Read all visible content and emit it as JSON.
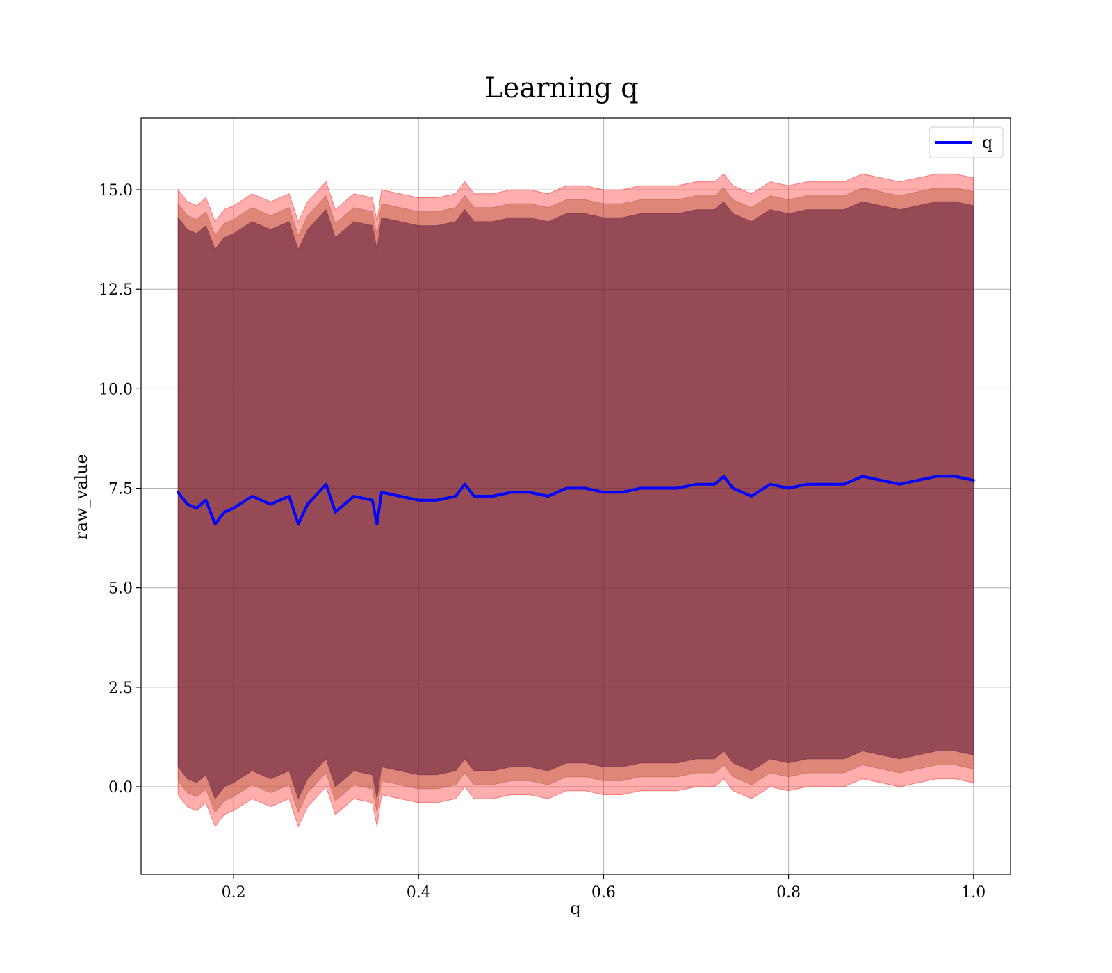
{
  "chart_data": {
    "type": "line",
    "title": "Learning q",
    "xlabel": "q",
    "ylabel": "raw_value",
    "xlim": [
      0.1,
      1.04
    ],
    "ylim": [
      -2.2,
      16.8
    ],
    "x_ticks": [
      0.2,
      0.4,
      0.6,
      0.8,
      1.0
    ],
    "x_tick_labels": [
      "0.2",
      "0.4",
      "0.6",
      "0.8",
      "1.0"
    ],
    "y_ticks": [
      0.0,
      2.5,
      5.0,
      7.5,
      10.0,
      12.5,
      15.0
    ],
    "y_tick_labels": [
      "0.0",
      "2.5",
      "5.0",
      "7.5",
      "10.0",
      "12.5",
      "15.0"
    ],
    "grid": true,
    "legend_position": "top-right",
    "colors": {
      "line": "#0000ff",
      "band_outer": "#ff0000",
      "band_middle": "#b05030",
      "band_inner": "#5a1a3a",
      "grid": "#b0b0b0"
    },
    "series": [
      {
        "name": "q",
        "x": [
          0.14,
          0.15,
          0.16,
          0.17,
          0.18,
          0.19,
          0.2,
          0.22,
          0.24,
          0.26,
          0.27,
          0.28,
          0.3,
          0.31,
          0.33,
          0.35,
          0.355,
          0.36,
          0.38,
          0.4,
          0.42,
          0.44,
          0.45,
          0.46,
          0.48,
          0.5,
          0.52,
          0.54,
          0.56,
          0.58,
          0.6,
          0.62,
          0.64,
          0.66,
          0.68,
          0.7,
          0.72,
          0.73,
          0.74,
          0.76,
          0.78,
          0.8,
          0.82,
          0.84,
          0.86,
          0.88,
          0.9,
          0.92,
          0.94,
          0.96,
          0.98,
          1.0
        ],
        "y": [
          7.4,
          7.1,
          7.0,
          7.2,
          6.6,
          6.9,
          7.0,
          7.3,
          7.1,
          7.3,
          6.6,
          7.1,
          7.6,
          6.9,
          7.3,
          7.2,
          6.6,
          7.4,
          7.3,
          7.2,
          7.2,
          7.3,
          7.6,
          7.3,
          7.3,
          7.4,
          7.4,
          7.3,
          7.5,
          7.5,
          7.4,
          7.4,
          7.5,
          7.5,
          7.5,
          7.6,
          7.6,
          7.8,
          7.5,
          7.3,
          7.6,
          7.5,
          7.6,
          7.6,
          7.6,
          7.8,
          7.7,
          7.6,
          7.7,
          7.8,
          7.8,
          7.7
        ],
        "band_outer_half_width": 7.6,
        "band_middle_half_width": 7.25,
        "band_inner_half_width": 6.9
      }
    ]
  }
}
